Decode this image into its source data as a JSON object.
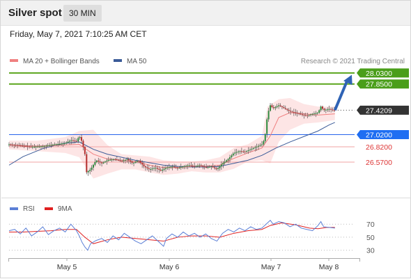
{
  "header": {
    "title": "Silver spot",
    "timeframe": "30 MIN",
    "datetime": "Friday, May 7, 2021 7:10:25 AM CET"
  },
  "chart_data": [
    {
      "type": "line",
      "title": "Silver spot",
      "legend": [
        {
          "name": "MA 20 + Bollinger Bands",
          "color": "#f08080"
        },
        {
          "name": "MA 50",
          "color": "#3b5b98"
        }
      ],
      "credit": "Research © 2021 Trading Central",
      "ylim": [
        26.0,
        28.12
      ],
      "x_ticks": [
        "May 5",
        "May 6",
        "May 7",
        "May 8"
      ],
      "levels": [
        {
          "value": 28.03,
          "label": "28.0300",
          "type": "target",
          "color": "#5aa51c"
        },
        {
          "value": 27.85,
          "label": "27.8500",
          "type": "target",
          "color": "#5aa51c"
        },
        {
          "value": 27.4209,
          "label": "27.4209",
          "type": "last-price",
          "color": "#333333"
        },
        {
          "value": 27.02,
          "label": "27.0200",
          "type": "pivot",
          "color": "#2563eb"
        },
        {
          "value": 26.82,
          "label": "26.8200",
          "type": "support",
          "color": "#e07070"
        },
        {
          "value": 26.57,
          "label": "26.5700",
          "type": "support",
          "color": "#e07070"
        }
      ],
      "price_path": [
        [
          0,
          26.86
        ],
        [
          8,
          26.84
        ],
        [
          16,
          26.82
        ],
        [
          24,
          26.83
        ],
        [
          32,
          26.86
        ],
        [
          40,
          26.88
        ],
        [
          44,
          26.93
        ],
        [
          48,
          26.91
        ],
        [
          50,
          27.0
        ],
        [
          52,
          26.9
        ],
        [
          54,
          26.7
        ],
        [
          55,
          26.4
        ],
        [
          58,
          26.45
        ],
        [
          62,
          26.6
        ],
        [
          66,
          26.55
        ],
        [
          70,
          26.6
        ],
        [
          75,
          26.62
        ],
        [
          80,
          26.58
        ],
        [
          84,
          26.62
        ],
        [
          88,
          26.55
        ],
        [
          92,
          26.6
        ],
        [
          96,
          26.5
        ],
        [
          100,
          26.45
        ],
        [
          104,
          26.48
        ],
        [
          108,
          26.43
        ],
        [
          112,
          26.48
        ],
        [
          116,
          26.5
        ],
        [
          120,
          26.47
        ],
        [
          124,
          26.5
        ],
        [
          128,
          26.52
        ],
        [
          132,
          26.5
        ],
        [
          136,
          26.52
        ],
        [
          140,
          26.48
        ],
        [
          144,
          26.5
        ],
        [
          148,
          26.45
        ],
        [
          152,
          26.55
        ],
        [
          156,
          26.62
        ],
        [
          160,
          26.72
        ],
        [
          164,
          26.75
        ],
        [
          168,
          26.74
        ],
        [
          172,
          26.78
        ],
        [
          176,
          26.82
        ],
        [
          180,
          26.86
        ],
        [
          182,
          26.95
        ],
        [
          184,
          27.35
        ],
        [
          186,
          27.5
        ],
        [
          188,
          27.45
        ],
        [
          192,
          27.5
        ],
        [
          196,
          27.45
        ],
        [
          200,
          27.4
        ],
        [
          204,
          27.38
        ],
        [
          208,
          27.35
        ],
        [
          212,
          27.33
        ],
        [
          216,
          27.36
        ],
        [
          220,
          27.38
        ],
        [
          222,
          27.48
        ],
        [
          224,
          27.42
        ],
        [
          228,
          27.44
        ],
        [
          232,
          27.41
        ]
      ],
      "ma50_path": [
        [
          0,
          26.52
        ],
        [
          10,
          26.66
        ],
        [
          25,
          26.8
        ],
        [
          40,
          26.88
        ],
        [
          50,
          26.9
        ],
        [
          60,
          26.78
        ],
        [
          70,
          26.7
        ],
        [
          80,
          26.65
        ],
        [
          90,
          26.6
        ],
        [
          100,
          26.56
        ],
        [
          110,
          26.52
        ],
        [
          120,
          26.5
        ],
        [
          130,
          26.49
        ],
        [
          140,
          26.49
        ],
        [
          150,
          26.5
        ],
        [
          160,
          26.55
        ],
        [
          170,
          26.6
        ],
        [
          180,
          26.68
        ],
        [
          190,
          26.8
        ],
        [
          200,
          26.9
        ],
        [
          210,
          26.99
        ],
        [
          220,
          27.08
        ],
        [
          228,
          27.18
        ],
        [
          232,
          27.22
        ]
      ],
      "ma20_path": [
        [
          0,
          26.85
        ],
        [
          20,
          26.83
        ],
        [
          40,
          26.85
        ],
        [
          50,
          26.86
        ],
        [
          60,
          26.7
        ],
        [
          70,
          26.62
        ],
        [
          80,
          26.6
        ],
        [
          90,
          26.58
        ],
        [
          100,
          26.52
        ],
        [
          110,
          26.48
        ],
        [
          120,
          26.48
        ],
        [
          130,
          26.5
        ],
        [
          140,
          26.5
        ],
        [
          150,
          26.52
        ],
        [
          160,
          26.63
        ],
        [
          170,
          26.72
        ],
        [
          180,
          26.8
        ],
        [
          186,
          27.0
        ],
        [
          192,
          27.3
        ],
        [
          200,
          27.38
        ],
        [
          210,
          27.36
        ],
        [
          220,
          27.34
        ],
        [
          232,
          27.36
        ]
      ],
      "bollinger_upper": [
        [
          0,
          26.92
        ],
        [
          20,
          26.92
        ],
        [
          40,
          26.98
        ],
        [
          50,
          27.08
        ],
        [
          60,
          27.1
        ],
        [
          70,
          26.85
        ],
        [
          80,
          26.7
        ],
        [
          90,
          26.68
        ],
        [
          100,
          26.66
        ],
        [
          110,
          26.6
        ],
        [
          120,
          26.58
        ],
        [
          130,
          26.58
        ],
        [
          140,
          26.6
        ],
        [
          150,
          26.65
        ],
        [
          160,
          26.8
        ],
        [
          170,
          26.86
        ],
        [
          180,
          27.0
        ],
        [
          184,
          27.48
        ],
        [
          192,
          27.6
        ],
        [
          200,
          27.62
        ],
        [
          210,
          27.52
        ],
        [
          220,
          27.48
        ],
        [
          232,
          27.48
        ]
      ],
      "bollinger_lower": [
        [
          0,
          26.78
        ],
        [
          20,
          26.75
        ],
        [
          40,
          26.72
        ],
        [
          50,
          26.65
        ],
        [
          60,
          26.3
        ],
        [
          70,
          26.38
        ],
        [
          80,
          26.45
        ],
        [
          90,
          26.45
        ],
        [
          100,
          26.4
        ],
        [
          110,
          26.36
        ],
        [
          120,
          26.38
        ],
        [
          130,
          26.42
        ],
        [
          140,
          26.4
        ],
        [
          150,
          26.4
        ],
        [
          160,
          26.46
        ],
        [
          170,
          26.58
        ],
        [
          180,
          26.6
        ],
        [
          186,
          26.55
        ],
        [
          192,
          26.9
        ],
        [
          200,
          27.1
        ],
        [
          210,
          27.2
        ],
        [
          220,
          27.22
        ],
        [
          232,
          27.26
        ]
      ],
      "forecast_arrow": {
        "from": [
          232,
          27.42
        ],
        "to": [
          244,
          28.0
        ]
      }
    },
    {
      "type": "line",
      "legend": [
        {
          "name": "RSI",
          "color": "#5b7fd6"
        },
        {
          "name": "9MA",
          "color": "#e02020"
        }
      ],
      "ylim": [
        20,
        82
      ],
      "levels": [
        70,
        50,
        30
      ],
      "level_labels": [
        "70",
        "50",
        "30"
      ],
      "rsi": [
        [
          0,
          60
        ],
        [
          4,
          62
        ],
        [
          8,
          55
        ],
        [
          12,
          64
        ],
        [
          16,
          52
        ],
        [
          20,
          58
        ],
        [
          24,
          66
        ],
        [
          28,
          54
        ],
        [
          32,
          60
        ],
        [
          36,
          64
        ],
        [
          40,
          58
        ],
        [
          44,
          70
        ],
        [
          48,
          60
        ],
        [
          50,
          52
        ],
        [
          52,
          42
        ],
        [
          54,
          35
        ],
        [
          56,
          30
        ],
        [
          58,
          40
        ],
        [
          62,
          45
        ],
        [
          66,
          48
        ],
        [
          70,
          42
        ],
        [
          74,
          52
        ],
        [
          78,
          46
        ],
        [
          82,
          56
        ],
        [
          86,
          50
        ],
        [
          90,
          44
        ],
        [
          94,
          40
        ],
        [
          98,
          46
        ],
        [
          102,
          52
        ],
        [
          106,
          44
        ],
        [
          110,
          36
        ],
        [
          112,
          48
        ],
        [
          116,
          55
        ],
        [
          120,
          50
        ],
        [
          124,
          58
        ],
        [
          128,
          52
        ],
        [
          132,
          56
        ],
        [
          136,
          50
        ],
        [
          140,
          55
        ],
        [
          144,
          48
        ],
        [
          148,
          44
        ],
        [
          152,
          56
        ],
        [
          156,
          62
        ],
        [
          160,
          58
        ],
        [
          164,
          64
        ],
        [
          168,
          60
        ],
        [
          172,
          66
        ],
        [
          176,
          62
        ],
        [
          180,
          64
        ],
        [
          184,
          72
        ],
        [
          186,
          76
        ],
        [
          188,
          70
        ],
        [
          192,
          74
        ],
        [
          196,
          72
        ],
        [
          200,
          66
        ],
        [
          204,
          70
        ],
        [
          208,
          64
        ],
        [
          212,
          62
        ],
        [
          216,
          60
        ],
        [
          220,
          68
        ],
        [
          222,
          74
        ],
        [
          224,
          66
        ],
        [
          228,
          65
        ],
        [
          232,
          64
        ]
      ],
      "ma9": [
        [
          0,
          58
        ],
        [
          10,
          58
        ],
        [
          20,
          59
        ],
        [
          30,
          60
        ],
        [
          40,
          62
        ],
        [
          48,
          62
        ],
        [
          54,
          50
        ],
        [
          60,
          40
        ],
        [
          70,
          46
        ],
        [
          80,
          50
        ],
        [
          90,
          48
        ],
        [
          100,
          46
        ],
        [
          110,
          44
        ],
        [
          120,
          50
        ],
        [
          130,
          52
        ],
        [
          140,
          52
        ],
        [
          150,
          50
        ],
        [
          160,
          56
        ],
        [
          170,
          60
        ],
        [
          180,
          62
        ],
        [
          186,
          68
        ],
        [
          194,
          72
        ],
        [
          204,
          69
        ],
        [
          214,
          64
        ],
        [
          220,
          63
        ],
        [
          226,
          65
        ],
        [
          232,
          65
        ]
      ]
    }
  ]
}
